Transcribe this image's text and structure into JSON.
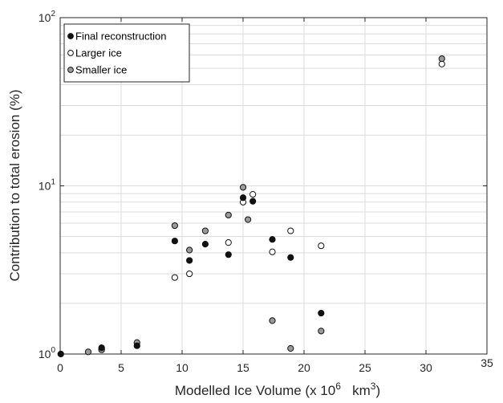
{
  "chart_data": {
    "type": "scatter",
    "xlabel": "Modelled Ice Volume (x 10",
    "xlabel_sup1": "6",
    "xlabel_mid": "   km",
    "xlabel_sup2": "3",
    "xlabel_end": ")",
    "ylabel": "Contribution to total erosion (%)",
    "xlim": [
      0,
      35
    ],
    "x_ticks": [
      0,
      5,
      10,
      15,
      20,
      25,
      30,
      35
    ],
    "x_tick_labels": [
      "0",
      "5",
      "10",
      "15",
      "20",
      "25",
      "30",
      "35"
    ],
    "y_scale": "log",
    "ylim": [
      1,
      100
    ],
    "y_tick_labels": [
      {
        "value": 1,
        "base": "10",
        "exp": "0"
      },
      {
        "value": 10,
        "base": "10",
        "exp": "1"
      },
      {
        "value": 100,
        "base": "10",
        "exp": "2"
      }
    ],
    "grid": true,
    "legend_position": "top-left",
    "series": [
      {
        "name": "Final reconstruction",
        "marker": "filled-black",
        "x": [
          0.05,
          3.4,
          6.3,
          9.4,
          10.6,
          11.9,
          13.8,
          15.0,
          15.8,
          17.4,
          18.9,
          21.4
        ],
        "y": [
          1.0,
          1.09,
          1.12,
          4.7,
          3.6,
          4.5,
          3.9,
          8.5,
          8.1,
          4.8,
          3.75,
          1.75
        ]
      },
      {
        "name": "Larger ice",
        "marker": "open-white",
        "x": [
          3.4,
          9.4,
          10.6,
          13.8,
          15.0,
          15.8,
          17.4,
          18.9,
          21.4,
          31.3
        ],
        "y": [
          1.07,
          2.85,
          3.0,
          4.6,
          8.0,
          8.9,
          4.05,
          5.4,
          4.4,
          53.0
        ]
      },
      {
        "name": "Smaller ice",
        "marker": "filled-gray",
        "x": [
          2.3,
          3.4,
          6.3,
          9.4,
          10.6,
          11.9,
          13.8,
          15.0,
          15.4,
          17.4,
          18.9,
          21.4,
          31.3
        ],
        "y": [
          1.03,
          1.06,
          1.17,
          5.8,
          4.15,
          5.4,
          6.7,
          9.8,
          6.3,
          1.58,
          1.08,
          1.37,
          57.0
        ]
      }
    ]
  }
}
